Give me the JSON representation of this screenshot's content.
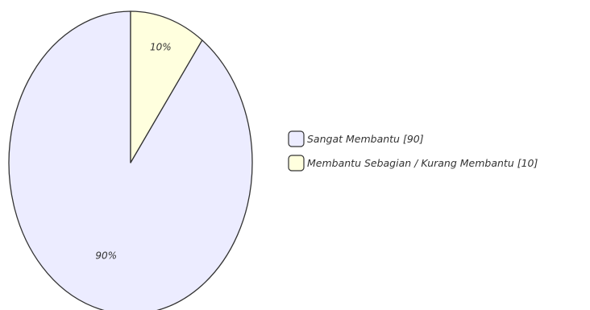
{
  "chart_data": {
    "type": "pie",
    "title": "",
    "start_angle": "top",
    "direction": "counterclockwise",
    "legend_position": "right",
    "slices": [
      {
        "legend": "Sangat Membantu [90]",
        "value": 90,
        "label": "90%",
        "color": "#ececff"
      },
      {
        "legend": "Membantu Sebagian / Kurang Membantu [10]",
        "value": 10,
        "label": "10%",
        "color": "#ffffde"
      }
    ],
    "stroke_color": "#333333"
  }
}
